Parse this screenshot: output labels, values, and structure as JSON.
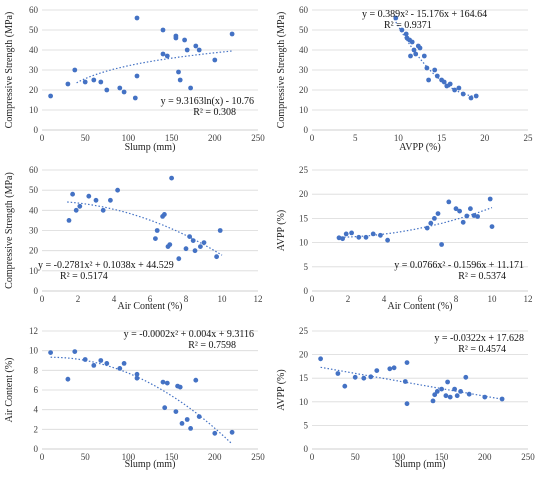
{
  "chart_data": [
    {
      "type": "scatter",
      "xlabel": "Slump (mm)",
      "ylabel": "Compressive Strength (MPa)",
      "xlim": [
        0,
        250
      ],
      "xticks": [
        0,
        50,
        100,
        150,
        200,
        250
      ],
      "ylim": [
        0,
        60
      ],
      "yticks": [
        0,
        10,
        20,
        30,
        40,
        50,
        60
      ],
      "grid": "horizontal",
      "points_color": "#4472c4",
      "points": [
        [
          10,
          17
        ],
        [
          30,
          23
        ],
        [
          38,
          30
        ],
        [
          50,
          24
        ],
        [
          60,
          25
        ],
        [
          68,
          24
        ],
        [
          75,
          20
        ],
        [
          90,
          21
        ],
        [
          95,
          19
        ],
        [
          110,
          56
        ],
        [
          108,
          16
        ],
        [
          110,
          27
        ],
        [
          140,
          50
        ],
        [
          140,
          38
        ],
        [
          145,
          37
        ],
        [
          155,
          47
        ],
        [
          155,
          46
        ],
        [
          158,
          29
        ],
        [
          160,
          25
        ],
        [
          165,
          45
        ],
        [
          168,
          40
        ],
        [
          172,
          21
        ],
        [
          178,
          42
        ],
        [
          182,
          40
        ],
        [
          200,
          35
        ],
        [
          220,
          48
        ]
      ],
      "trendline": {
        "kind": "log",
        "a": 9.3163,
        "b": -10.76
      },
      "equation": "y = 9.3163ln(x) - 10.76",
      "r2": "R² = 0.308",
      "label_align": "right"
    },
    {
      "type": "scatter",
      "xlabel": "AVPP (%)",
      "ylabel": "Compressive Strength (MPa)",
      "xlim": [
        0,
        25
      ],
      "xticks": [
        0,
        5,
        10,
        15,
        20,
        25
      ],
      "ylim": [
        0,
        60
      ],
      "yticks": [
        0,
        10,
        20,
        30,
        40,
        50,
        60
      ],
      "grid": "horizontal",
      "points_color": "#4472c4",
      "points": [
        [
          9.7,
          56
        ],
        [
          10.4,
          50
        ],
        [
          10.9,
          48
        ],
        [
          11.0,
          46
        ],
        [
          11.3,
          45
        ],
        [
          11.4,
          37
        ],
        [
          11.6,
          44
        ],
        [
          11.8,
          40
        ],
        [
          12.0,
          38
        ],
        [
          12.3,
          42
        ],
        [
          12.5,
          41
        ],
        [
          13.0,
          37
        ],
        [
          13.3,
          31
        ],
        [
          13.5,
          25
        ],
        [
          14.2,
          30
        ],
        [
          14.5,
          27
        ],
        [
          15.0,
          25
        ],
        [
          15.3,
          24
        ],
        [
          15.6,
          22
        ],
        [
          16.0,
          23
        ],
        [
          16.5,
          20
        ],
        [
          17.0,
          21
        ],
        [
          17.5,
          18
        ],
        [
          18.4,
          16
        ],
        [
          19.0,
          17
        ]
      ],
      "trendline": {
        "kind": "poly2",
        "a": 0.389,
        "b": -15.176,
        "c": 164.64,
        "xmin": 9.5,
        "xmax": 19.2
      },
      "equation": "y = 0.389x² - 15.176x + 164.64",
      "r2": "R² = 0.9371",
      "label_align": "left"
    },
    {
      "type": "scatter",
      "xlabel": "Air Content (%)",
      "ylabel": "Compressive Strength (MPa)",
      "xlim": [
        0,
        12
      ],
      "xticks": [
        0,
        2,
        4,
        6,
        8,
        10,
        12
      ],
      "ylim": [
        0,
        60
      ],
      "yticks": [
        0,
        10,
        20,
        30,
        40,
        50,
        60
      ],
      "grid": "horizontal",
      "points_color": "#4472c4",
      "points": [
        [
          1.5,
          35
        ],
        [
          1.7,
          48
        ],
        [
          1.9,
          40
        ],
        [
          2.1,
          42
        ],
        [
          2.6,
          47
        ],
        [
          3.0,
          45
        ],
        [
          3.4,
          40
        ],
        [
          3.8,
          45
        ],
        [
          4.2,
          50
        ],
        [
          6.3,
          26
        ],
        [
          6.4,
          30
        ],
        [
          6.7,
          37
        ],
        [
          6.8,
          38
        ],
        [
          7.0,
          22
        ],
        [
          7.1,
          23
        ],
        [
          7.2,
          56
        ],
        [
          7.6,
          16
        ],
        [
          8.0,
          21
        ],
        [
          8.2,
          27
        ],
        [
          8.4,
          25
        ],
        [
          8.5,
          20
        ],
        [
          8.8,
          22
        ],
        [
          9.0,
          24
        ],
        [
          9.7,
          17
        ],
        [
          9.9,
          30
        ]
      ],
      "trendline": {
        "kind": "poly2",
        "a": -0.2781,
        "b": 0.1038,
        "c": 44.529,
        "xmin": 1.4,
        "xmax": 10
      },
      "equation": "y = -0.2781x² + 0.1038x + 44.529",
      "r2": "R² = 0.5174",
      "label_align": "left"
    },
    {
      "type": "scatter",
      "xlabel": "Air Content (%)",
      "ylabel": "AVPP (%)",
      "xlim": [
        0,
        12
      ],
      "xticks": [
        0,
        2,
        4,
        6,
        8,
        10,
        12
      ],
      "ylim": [
        0,
        25
      ],
      "yticks": [
        0,
        5,
        10,
        15,
        20,
        25
      ],
      "grid": "horizontal",
      "points_color": "#4472c4",
      "points": [
        [
          1.5,
          11
        ],
        [
          1.7,
          10.8
        ],
        [
          1.9,
          11.8
        ],
        [
          2.2,
          12
        ],
        [
          2.6,
          11.1
        ],
        [
          3.0,
          11.1
        ],
        [
          3.4,
          11.8
        ],
        [
          3.8,
          11.5
        ],
        [
          4.2,
          10.5
        ],
        [
          6.4,
          13
        ],
        [
          6.6,
          14
        ],
        [
          6.8,
          15
        ],
        [
          7.0,
          16
        ],
        [
          7.2,
          9.6
        ],
        [
          7.6,
          18.4
        ],
        [
          8.0,
          17
        ],
        [
          8.2,
          16.5
        ],
        [
          8.4,
          14.2
        ],
        [
          8.6,
          15.5
        ],
        [
          8.8,
          17
        ],
        [
          9.0,
          15.6
        ],
        [
          9.2,
          15.4
        ],
        [
          9.9,
          19
        ],
        [
          10.0,
          13.3
        ]
      ],
      "trendline": {
        "kind": "poly2",
        "a": 0.0766,
        "b": -0.1596,
        "c": 11.171,
        "xmin": 1.4,
        "xmax": 10
      },
      "equation": "y = 0.0766x² - 0.1596x + 11.171",
      "r2": "R² = 0.5374",
      "label_align": "right"
    },
    {
      "type": "scatter",
      "xlabel": "Slump (mm)",
      "ylabel": "Air Content (%)",
      "xlim": [
        0,
        250
      ],
      "xticks": [
        0,
        50,
        100,
        150,
        200,
        250
      ],
      "ylim": [
        0,
        12
      ],
      "yticks": [
        0,
        2,
        4,
        6,
        8,
        10,
        12
      ],
      "grid": "horizontal",
      "points_color": "#4472c4",
      "points": [
        [
          10,
          9.8
        ],
        [
          30,
          7.1
        ],
        [
          38,
          9.9
        ],
        [
          50,
          9.1
        ],
        [
          60,
          8.5
        ],
        [
          68,
          9.0
        ],
        [
          75,
          8.7
        ],
        [
          90,
          8.2
        ],
        [
          95,
          8.7
        ],
        [
          110,
          7.2
        ],
        [
          110,
          7.6
        ],
        [
          140,
          6.8
        ],
        [
          142,
          4.2
        ],
        [
          145,
          6.7
        ],
        [
          155,
          3.8
        ],
        [
          157,
          6.4
        ],
        [
          160,
          6.3
        ],
        [
          162,
          2.6
        ],
        [
          168,
          3.0
        ],
        [
          172,
          2.1
        ],
        [
          178,
          7.0
        ],
        [
          182,
          3.3
        ],
        [
          200,
          1.6
        ],
        [
          220,
          1.7
        ]
      ],
      "trendline": {
        "kind": "poly2",
        "a": -0.0002,
        "b": 0.004,
        "c": 9.3116,
        "xmin": 10,
        "xmax": 220
      },
      "equation": "y = -0.0002x² + 0.004x + 9.3116",
      "r2": "R² = 0.7598",
      "label_align": "right"
    },
    {
      "type": "scatter",
      "xlabel": "Slump (mm)",
      "ylabel": "AVPP (%)",
      "xlim": [
        0,
        250
      ],
      "xticks": [
        0,
        50,
        100,
        150,
        200,
        250
      ],
      "ylim": [
        0,
        25
      ],
      "yticks": [
        0,
        5,
        10,
        15,
        20,
        25
      ],
      "grid": "horizontal",
      "points_color": "#4472c4",
      "points": [
        [
          10,
          19.1
        ],
        [
          30,
          16
        ],
        [
          38,
          13.3
        ],
        [
          50,
          15.2
        ],
        [
          60,
          15
        ],
        [
          68,
          15.3
        ],
        [
          75,
          16.6
        ],
        [
          90,
          17
        ],
        [
          95,
          17.2
        ],
        [
          110,
          18.3
        ],
        [
          110,
          9.6
        ],
        [
          108,
          14.3
        ],
        [
          140,
          10.2
        ],
        [
          142,
          11.5
        ],
        [
          145,
          12.2
        ],
        [
          150,
          12.7
        ],
        [
          155,
          11.3
        ],
        [
          157,
          14.2
        ],
        [
          160,
          11
        ],
        [
          165,
          12.7
        ],
        [
          168,
          11.3
        ],
        [
          172,
          12.2
        ],
        [
          178,
          15.2
        ],
        [
          182,
          11.6
        ],
        [
          200,
          11
        ],
        [
          220,
          10.6
        ]
      ],
      "trendline": {
        "kind": "linear",
        "a": -0.0322,
        "b": 17.628,
        "xmin": 10,
        "xmax": 220
      },
      "equation": "y = -0.0322x + 17.628",
      "r2": "R² = 0.4574",
      "label_align": "right"
    }
  ]
}
